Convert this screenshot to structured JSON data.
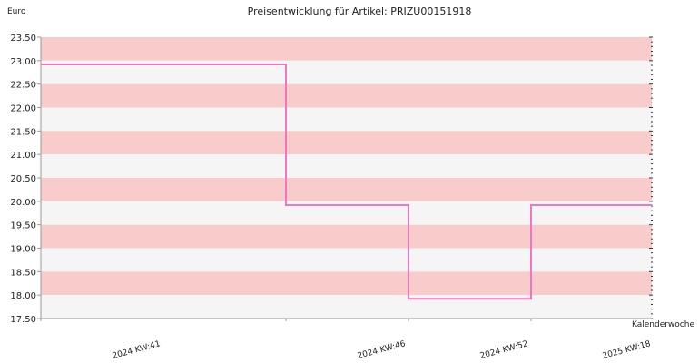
{
  "chart_data": {
    "type": "line",
    "title": "Preisentwicklung für Artikel: PRIZU00151918",
    "ylabel": "Euro",
    "xlabel": "Kalenderwoche",
    "ylim": [
      17.5,
      23.5
    ],
    "yticks": [
      23.5,
      23.0,
      22.5,
      22.0,
      21.5,
      21.0,
      20.5,
      20.0,
      19.5,
      19.0,
      18.5,
      18.0,
      17.5
    ],
    "ytick_labels": [
      "23.50",
      "23.00",
      "22.50",
      "22.00",
      "21.50",
      "21.00",
      "20.50",
      "20.00",
      "19.50",
      "19.00",
      "18.50",
      "18.00",
      "17.50"
    ],
    "xtick_labels": [
      "2024 KW:41",
      "2024 KW:46",
      "2024 KW:52",
      "2025 KW:18"
    ],
    "step": true,
    "series": [
      {
        "color": "#ee77c0",
        "points": [
          {
            "x": "2024 KW:41",
            "y": 22.92
          },
          {
            "x": "2024 KW:46",
            "y": 19.92
          },
          {
            "x": "2024 KW:52",
            "y": 17.92
          },
          {
            "x": "2025 KW:18",
            "y": 19.92
          }
        ]
      }
    ],
    "band_colors": [
      "#f9cccc",
      "#f5f5f5"
    ],
    "grid": true
  }
}
